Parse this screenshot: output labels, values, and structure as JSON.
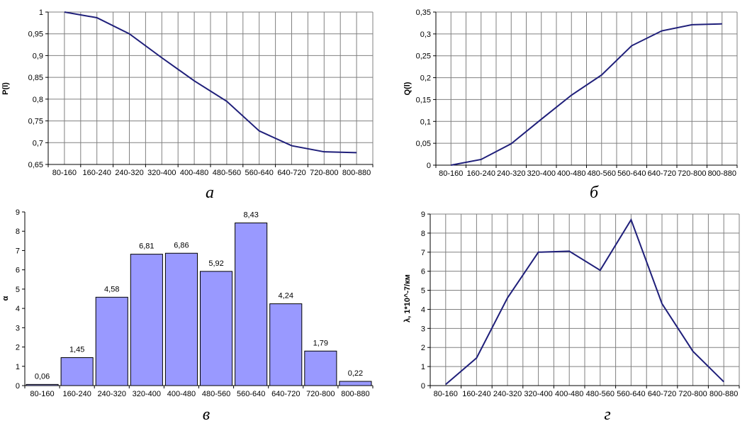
{
  "chart_data": [
    {
      "type": "line",
      "caption": "a",
      "ylabel": "P(l)",
      "xlabel": "",
      "categories": [
        "80-160",
        "160-240",
        "240-320",
        "320-400",
        "400-480",
        "480-560",
        "560-640",
        "640-720",
        "720-800",
        "800-880"
      ],
      "values": [
        1.0,
        0.987,
        0.95,
        0.895,
        0.842,
        0.795,
        0.727,
        0.693,
        0.679,
        0.677
      ],
      "ylim": [
        0.65,
        1
      ],
      "yticks": [
        "0,65",
        "0,7",
        "0,75",
        "0,8",
        "0,85",
        "0,9",
        "0,95",
        "1"
      ],
      "grid": true,
      "line_color": "#1f1f7a"
    },
    {
      "type": "line",
      "caption": "б",
      "ylabel": "Q(l)",
      "xlabel": "",
      "categories": [
        "80-160",
        "160-240",
        "240-320",
        "320-400",
        "400-480",
        "480-560",
        "560-640",
        "640-720",
        "720-800",
        "800-880"
      ],
      "values": [
        0.0,
        0.013,
        0.049,
        0.105,
        0.16,
        0.206,
        0.273,
        0.307,
        0.321,
        0.323
      ],
      "ylim": [
        0,
        0.35
      ],
      "yticks": [
        "0",
        "0,05",
        "0,1",
        "0,15",
        "0,2",
        "0,25",
        "0,3",
        "0,35"
      ],
      "grid": true,
      "line_color": "#1f1f7a"
    },
    {
      "type": "bar",
      "caption": "в",
      "ylabel": "α",
      "xlabel": "",
      "categories": [
        "80-160",
        "160-240",
        "240-320",
        "320-400",
        "400-480",
        "480-560",
        "560-640",
        "640-720",
        "720-800",
        "800-880"
      ],
      "values": [
        0.06,
        1.45,
        4.58,
        6.81,
        6.86,
        5.92,
        8.43,
        4.24,
        1.79,
        0.22
      ],
      "data_labels": [
        "0,06",
        "1,45",
        "4,58",
        "6,81",
        "6,86",
        "5,92",
        "8,43",
        "4,24",
        "1,79",
        "0,22"
      ],
      "ylim": [
        0,
        9
      ],
      "yticks": [
        "0",
        "1",
        "2",
        "3",
        "4",
        "5",
        "6",
        "7",
        "8",
        "9"
      ],
      "grid": false,
      "bar_color": "#9999ff"
    },
    {
      "type": "line",
      "caption": "г",
      "ylabel": "λ, 1*10^-7/км",
      "xlabel": "",
      "categories": [
        "80-160",
        "160-240",
        "240-320",
        "320-400",
        "400-480",
        "480-560",
        "560-640",
        "640-720",
        "720-800",
        "800-880"
      ],
      "values": [
        0.06,
        1.45,
        4.6,
        7.0,
        7.05,
        6.05,
        8.7,
        4.3,
        1.8,
        0.2
      ],
      "ylim": [
        0,
        9
      ],
      "yticks": [
        "0",
        "1",
        "2",
        "3",
        "4",
        "5",
        "6",
        "7",
        "8",
        "9"
      ],
      "grid": true,
      "line_color": "#1f1f7a"
    }
  ]
}
